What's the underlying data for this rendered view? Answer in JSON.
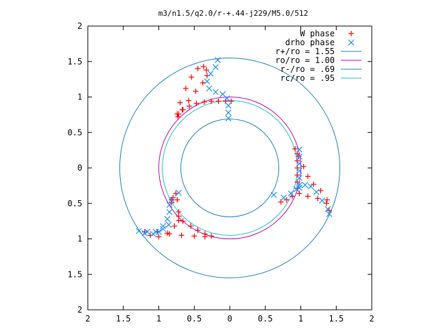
{
  "chart_data": {
    "type": "scatter",
    "title": "m3/n1.5/q2.0/r-+.44-j229/M5.0/512",
    "xlim": [
      -2,
      2
    ],
    "ylim": [
      -2,
      2
    ],
    "x_ticks": [
      "2",
      "1.5",
      "1",
      "0.5",
      "0",
      "0.5",
      "1",
      "1.5",
      "2"
    ],
    "y_ticks": [
      "2",
      "1.5",
      "1",
      "0.5",
      "0",
      "0.5",
      "1",
      "1.5",
      "2"
    ],
    "grid": false,
    "legend_position": "top-right",
    "legend": [
      {
        "label": "W phase",
        "marker": "+",
        "color": "#ff0000"
      },
      {
        "label": "drho phase",
        "marker": "x",
        "color": "#1e90ff"
      },
      {
        "label": "r+/ro = 1.55",
        "marker": "line",
        "color": "#1e7fbf"
      },
      {
        "label": "ro/ro = 1.00",
        "marker": "line",
        "color": "#c000c0"
      },
      {
        "label": "r-/ro = .69",
        "marker": "line",
        "color": "#1e7fbf"
      },
      {
        "label": "rc/ro = .95",
        "marker": "line",
        "color": "#20c0c0"
      }
    ],
    "circles": [
      {
        "r": 1.55,
        "color": "#1e7fbf"
      },
      {
        "r": 1.0,
        "color": "#c000c0"
      },
      {
        "r": 0.69,
        "color": "#1e7fbf"
      },
      {
        "r": 0.95,
        "color": "#20c0c0"
      }
    ],
    "series": [
      {
        "name": "W phase",
        "color": "#ff0000",
        "points": [
          [
            -0.73,
            0.72
          ],
          [
            -0.67,
            0.82
          ],
          [
            -0.58,
            0.95
          ],
          [
            -0.48,
            1.08
          ],
          [
            -0.38,
            1.2
          ],
          [
            -0.32,
            1.3
          ],
          [
            -0.33,
            1.38
          ],
          [
            -0.37,
            1.43
          ],
          [
            -0.45,
            1.4
          ],
          [
            -0.54,
            1.28
          ],
          [
            -0.62,
            1.12
          ],
          [
            -0.7,
            0.92
          ],
          [
            -0.74,
            0.76
          ],
          [
            -0.72,
            0.76
          ],
          [
            -0.66,
            0.82
          ],
          [
            -0.57,
            0.87
          ],
          [
            -0.47,
            0.91
          ],
          [
            -0.36,
            0.93
          ],
          [
            -0.26,
            0.94
          ],
          [
            -0.16,
            0.94
          ],
          [
            -0.06,
            0.94
          ],
          [
            0.02,
            0.94
          ],
          [
            0.92,
            0.27
          ],
          [
            0.97,
            0.16
          ],
          [
            1.04,
            0.02
          ],
          [
            1.1,
            -0.12
          ],
          [
            1.18,
            -0.23
          ],
          [
            1.28,
            -0.32
          ],
          [
            1.37,
            -0.45
          ],
          [
            1.4,
            -0.6
          ],
          [
            1.36,
            -0.5
          ],
          [
            1.24,
            -0.43
          ],
          [
            1.1,
            -0.4
          ],
          [
            0.98,
            -0.36
          ],
          [
            0.88,
            -0.4
          ],
          [
            0.8,
            -0.45
          ],
          [
            0.72,
            -0.48
          ],
          [
            0.95,
            0.2
          ],
          [
            0.95,
            0.1
          ],
          [
            0.95,
            0.0
          ],
          [
            0.95,
            -0.1
          ],
          [
            0.95,
            -0.2
          ],
          [
            0.95,
            -0.29
          ],
          [
            -0.82,
            -0.49
          ],
          [
            -0.8,
            -0.42
          ],
          [
            -0.76,
            -0.36
          ],
          [
            -0.74,
            -0.45
          ],
          [
            -0.72,
            -0.62
          ],
          [
            -0.72,
            -0.74
          ],
          [
            -0.78,
            -0.82
          ],
          [
            -0.88,
            -0.92
          ],
          [
            -1.0,
            -0.97
          ],
          [
            -1.12,
            -0.95
          ],
          [
            -1.2,
            -0.9
          ],
          [
            -1.02,
            -0.9
          ],
          [
            -0.85,
            -0.93
          ],
          [
            -0.68,
            -0.95
          ],
          [
            -0.5,
            -0.96
          ],
          [
            -0.35,
            -0.97
          ],
          [
            -0.26,
            -0.96
          ],
          [
            -0.82,
            -0.45
          ],
          [
            -0.72,
            -0.68
          ],
          [
            -0.66,
            -0.75
          ],
          [
            -0.55,
            -0.82
          ],
          [
            -0.45,
            -0.88
          ],
          [
            -0.35,
            -0.93
          ]
        ]
      },
      {
        "name": "drho phase",
        "color": "#1e90ff",
        "points": [
          [
            -0.17,
            1.52
          ],
          [
            -0.2,
            1.42
          ],
          [
            -0.27,
            1.33
          ],
          [
            -0.32,
            1.22
          ],
          [
            -0.29,
            1.12
          ],
          [
            -0.2,
            1.07
          ],
          [
            -0.1,
            1.04
          ],
          [
            -0.04,
            0.98
          ],
          [
            -0.02,
            0.88
          ],
          [
            -0.02,
            0.78
          ],
          [
            -0.02,
            0.7
          ],
          [
            0.98,
            0.26
          ],
          [
            0.98,
            0.16
          ],
          [
            0.98,
            0.06
          ],
          [
            0.98,
            -0.04
          ],
          [
            0.98,
            -0.14
          ],
          [
            0.98,
            -0.24
          ],
          [
            0.94,
            -0.3
          ],
          [
            0.86,
            -0.36
          ],
          [
            0.76,
            -0.42
          ],
          [
            0.62,
            -0.38
          ],
          [
            0.98,
            -0.28
          ],
          [
            1.06,
            -0.24
          ],
          [
            1.14,
            -0.26
          ],
          [
            1.22,
            -0.34
          ],
          [
            1.3,
            -0.46
          ],
          [
            1.38,
            -0.58
          ],
          [
            1.4,
            -0.65
          ],
          [
            -0.72,
            -0.35
          ],
          [
            -0.82,
            -0.45
          ],
          [
            -0.85,
            -0.52
          ],
          [
            -0.85,
            -0.62
          ],
          [
            -0.88,
            -0.72
          ],
          [
            -0.94,
            -0.82
          ],
          [
            -1.0,
            -0.9
          ],
          [
            -1.08,
            -0.93
          ],
          [
            -1.2,
            -0.92
          ],
          [
            -1.28,
            -0.89
          ],
          [
            -1.16,
            -0.9
          ],
          [
            -1.04,
            -0.9
          ],
          [
            -0.94,
            -0.86
          ],
          [
            -0.86,
            -0.8
          ]
        ]
      }
    ]
  }
}
